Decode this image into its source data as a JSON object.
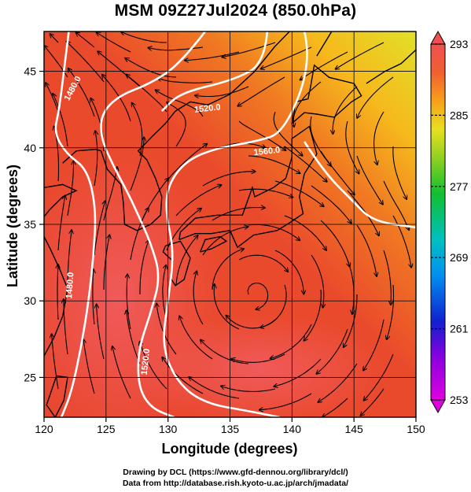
{
  "title": "MSM 09Z27Jul2024 (850.0hPa)",
  "axes": {
    "xlabel": "Longitude (degrees)",
    "ylabel": "Latitude  (degrees)",
    "x_ticks": [
      "120",
      "125",
      "130",
      "135",
      "140",
      "145",
      "150"
    ],
    "y_ticks": [
      "25",
      "30",
      "35",
      "40",
      "45"
    ]
  },
  "colorbar": {
    "tick_labels": [
      "293",
      "285",
      "277",
      "269",
      "261",
      "253"
    ]
  },
  "contours": [
    {
      "label": "1480.0"
    },
    {
      "label": "1520.0"
    },
    {
      "label": "1560.0"
    }
  ],
  "credits": {
    "line1": "Drawing by DCL (https://www.gfd-dennou.org/library/dcl/)",
    "line2": "Data from http://database.rish.kyoto-u.ac.jp/arch/jmadata/"
  },
  "chart_data": {
    "type": "heatmap",
    "title": "MSM 09Z27Jul2024 (850.0hPa)",
    "xlabel": "Longitude (degrees)",
    "ylabel": "Latitude  (degrees)",
    "xlim": [
      120,
      150
    ],
    "ylim": [
      22.4,
      47.6
    ],
    "x_ticks": [
      120,
      125,
      130,
      135,
      140,
      145,
      150
    ],
    "y_ticks": [
      25,
      30,
      35,
      40,
      45
    ],
    "colorbar_range": [
      253,
      293
    ],
    "colorbar_ticks": [
      293,
      285,
      277,
      269,
      261,
      253
    ],
    "contour_levels": [
      1480.0,
      1520.0,
      1560.0
    ],
    "grid": true,
    "colors": {
      "warm": "#e83c2a",
      "hot": "#f0584e",
      "mild": "#f5a020",
      "cool": "#d8dc24"
    }
  }
}
